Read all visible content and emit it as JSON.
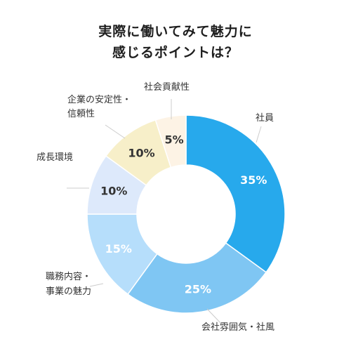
{
  "title_lines": [
    "実際に働いてみて魅力に",
    "感じるポイントは？"
  ],
  "chart_data": {
    "type": "pie",
    "title": "実際に働いてみて魅力に感じるポイントは？",
    "unit": "%",
    "slices": [
      {
        "label": "社員",
        "value": 35,
        "display": "35%",
        "color": "#27a9ec",
        "label_color": "#ffffff"
      },
      {
        "label": "会社雰囲気・社風",
        "value": 25,
        "display": "25%",
        "color": "#7fc6f3",
        "label_color": "#ffffff"
      },
      {
        "label": "職務内容・事業の魅力",
        "value": 15,
        "display": "15%",
        "color": "#b6defb",
        "label_color": "#ffffff"
      },
      {
        "label": "成長環境",
        "value": 10,
        "display": "10%",
        "color": "#dde9fb",
        "label_color": "#333333"
      },
      {
        "label": "企業の安定性・信頼性",
        "value": 10,
        "display": "10%",
        "color": "#f7efc9",
        "label_color": "#333333"
      },
      {
        "label": "社会貢献性",
        "value": 5,
        "display": "5%",
        "color": "#fdf3e5",
        "label_color": "#333333"
      }
    ]
  },
  "callouts": [
    {
      "lines": [
        "社員"
      ]
    },
    {
      "lines": [
        "会社雰囲気・社風"
      ]
    },
    {
      "lines": [
        "職務内容・",
        "事業の魅力"
      ]
    },
    {
      "lines": [
        "成長環境"
      ]
    },
    {
      "lines": [
        "企業の安定性・",
        "信頼性"
      ]
    },
    {
      "lines": [
        "社会貢献性"
      ]
    }
  ]
}
